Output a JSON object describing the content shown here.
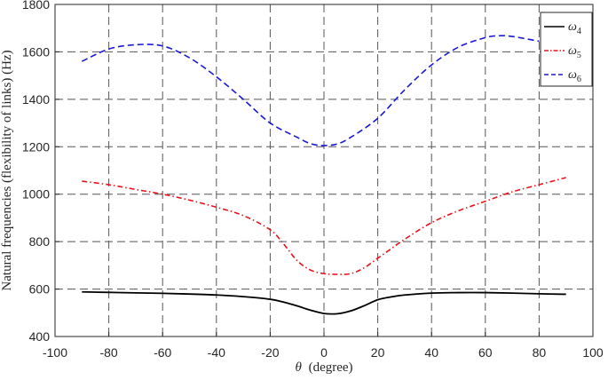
{
  "chart_data": {
    "type": "line",
    "xlabel": "(degree)",
    "xlabel_symbol": "θ",
    "ylabel": "Natural frequencies (flexibility of links) (Hz)",
    "xlim": [
      -100,
      100
    ],
    "ylim": [
      400,
      1800
    ],
    "x_ticks": [
      "-100",
      "-80",
      "-60",
      "-40",
      "-20",
      "0",
      "20",
      "40",
      "60",
      "80",
      "100"
    ],
    "y_ticks": [
      "400",
      "600",
      "800",
      "1000",
      "1200",
      "1400",
      "1600",
      "1800"
    ],
    "grid": true,
    "legend_position": "top-right",
    "series": [
      {
        "name": "ω4",
        "symbol": "ω",
        "sub": "4",
        "color": "#000000",
        "style": "solid",
        "x": [
          -90,
          -80,
          -70,
          -60,
          -50,
          -40,
          -30,
          -20,
          -15,
          -10,
          -5,
          0,
          5,
          10,
          15,
          20,
          25,
          30,
          40,
          50,
          60,
          70,
          80,
          90
        ],
        "y": [
          588,
          586,
          584,
          582,
          579,
          575,
          568,
          557,
          545,
          529,
          511,
          497,
          496,
          508,
          530,
          555,
          567,
          575,
          583,
          585,
          585,
          583,
          580,
          578
        ]
      },
      {
        "name": "ω5",
        "symbol": "ω",
        "sub": "5",
        "color": "#e8141b",
        "style": "dashdot",
        "x": [
          -90,
          -80,
          -70,
          -60,
          -50,
          -40,
          -30,
          -20,
          -15,
          -10,
          -5,
          0,
          5,
          10,
          15,
          20,
          25,
          30,
          40,
          50,
          60,
          70,
          80,
          90
        ],
        "y": [
          1055,
          1040,
          1020,
          1000,
          975,
          945,
          910,
          850,
          790,
          720,
          680,
          665,
          662,
          665,
          690,
          730,
          770,
          810,
          880,
          930,
          970,
          1010,
          1040,
          1070
        ]
      },
      {
        "name": "ω6",
        "symbol": "ω",
        "sub": "6",
        "color": "#1a1ad6",
        "style": "dashed",
        "x": [
          -90,
          -80,
          -70,
          -60,
          -50,
          -40,
          -30,
          -20,
          -10,
          -5,
          0,
          5,
          10,
          20,
          30,
          40,
          50,
          60,
          65,
          70,
          80
        ],
        "y": [
          1560,
          1612,
          1630,
          1625,
          1575,
          1495,
          1400,
          1300,
          1240,
          1213,
          1205,
          1212,
          1240,
          1320,
          1440,
          1545,
          1620,
          1660,
          1668,
          1665,
          1645
        ]
      }
    ]
  }
}
